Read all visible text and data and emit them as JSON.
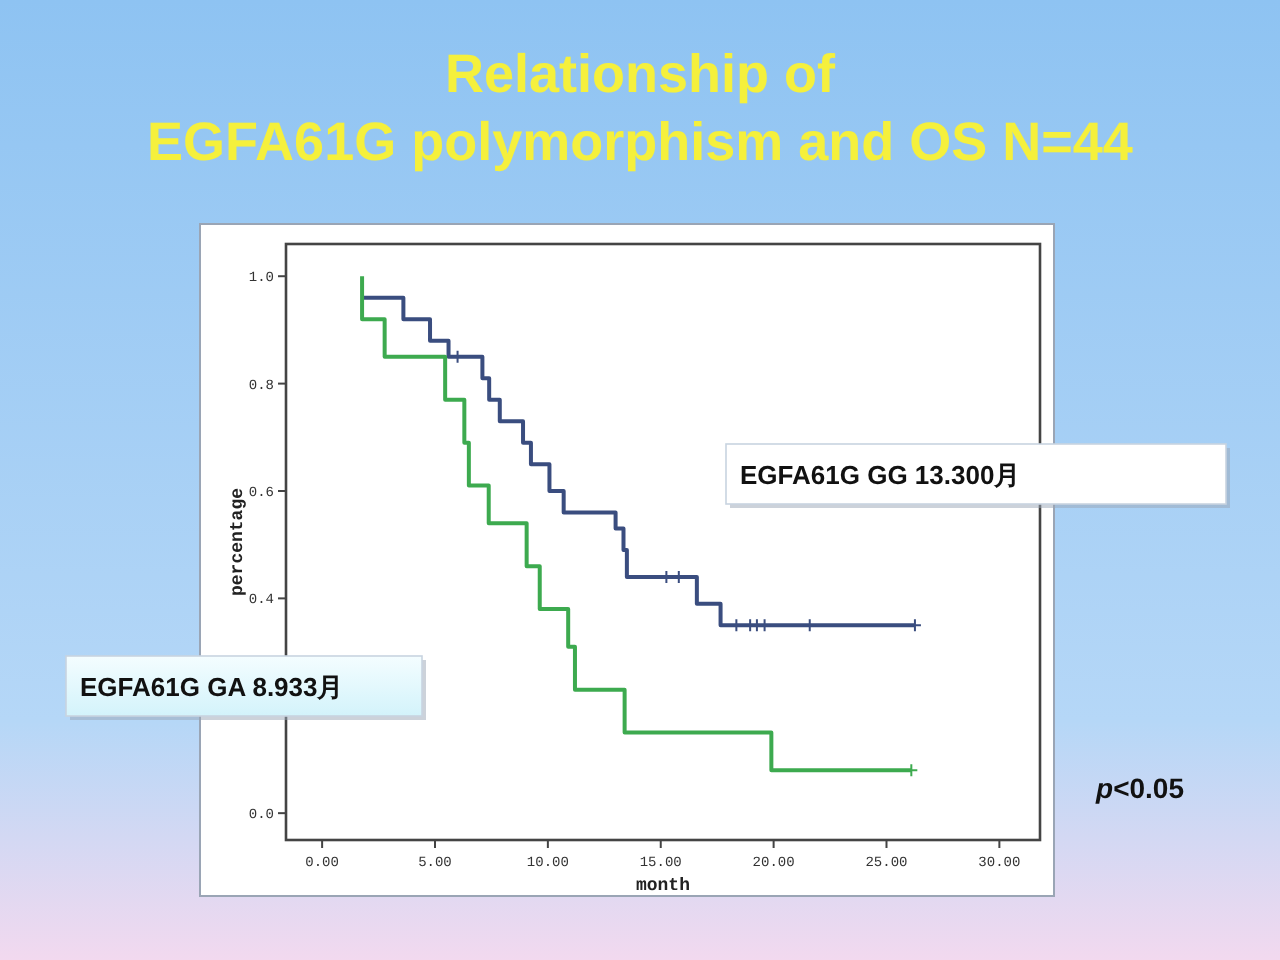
{
  "chart_data": {
    "type": "step",
    "title": "Relationship of\nEGFA61G polymorphism and OS N=44",
    "xlabel": "month",
    "ylabel": "percentage",
    "xlim": [
      -1.6,
      31.8
    ],
    "ylim": [
      -0.05,
      1.06
    ],
    "xticks": [
      {
        "value": 0,
        "label": "0.00"
      },
      {
        "value": 5,
        "label": "5.00"
      },
      {
        "value": 10,
        "label": "10.00"
      },
      {
        "value": 15,
        "label": "15.00"
      },
      {
        "value": 20,
        "label": "20.00"
      },
      {
        "value": 25,
        "label": "25.00"
      },
      {
        "value": 30,
        "label": "30.00"
      }
    ],
    "yticks": [
      {
        "value": 0,
        "label": "0.0"
      },
      {
        "value": 0.2,
        "label": null
      },
      {
        "value": 0.4,
        "label": "0.4"
      },
      {
        "value": 0.6,
        "label": "0.6"
      },
      {
        "value": 0.8,
        "label": "0.8"
      },
      {
        "value": 1,
        "label": "1.0"
      }
    ],
    "grid": false,
    "series": [
      {
        "color": "#3a4d7f",
        "x": [
          1.77,
          3.6,
          4.78,
          5.6,
          7.1,
          7.4,
          7.87,
          8.9,
          9.25,
          10.07,
          10.7,
          13.0,
          13.35,
          13.5,
          16.6,
          17.65,
          26.26
        ],
        "values": [
          0.96,
          0.92,
          0.88,
          0.85,
          0.81,
          0.77,
          0.73,
          0.69,
          0.65,
          0.6,
          0.56,
          0.53,
          0.49,
          0.44,
          0.39,
          0.35,
          0.35
        ]
      },
      {
        "color": "#3daa4f",
        "x": [
          1.77,
          1.77,
          2.77,
          5.45,
          6.3,
          6.5,
          7.38,
          9.06,
          9.64,
          10.9,
          11.2,
          13.4,
          19.9,
          26.1
        ],
        "values": [
          1.0,
          0.92,
          0.85,
          0.77,
          0.69,
          0.61,
          0.54,
          0.46,
          0.38,
          0.31,
          0.23,
          0.15,
          0.08,
          0.08
        ]
      },
      {
        "type": "scatter",
        "marker": "cross",
        "color": "#3a4d7f",
        "x": [
          6.0,
          15.25,
          15.8,
          18.35,
          18.96,
          19.26,
          19.6,
          21.6,
          26.26
        ],
        "values": [
          0.85,
          0.44,
          0.44,
          0.35,
          0.35,
          0.35,
          0.35,
          0.35,
          0.35
        ]
      },
      {
        "type": "scatter",
        "marker": "cross",
        "color": "#3daa4f",
        "x": [
          26.1
        ],
        "values": [
          0.08
        ]
      }
    ],
    "annotations": [
      "EGFA61G  GG 13.300月",
      "EGFA61G GA 8.933月",
      "p<0.05"
    ]
  }
}
